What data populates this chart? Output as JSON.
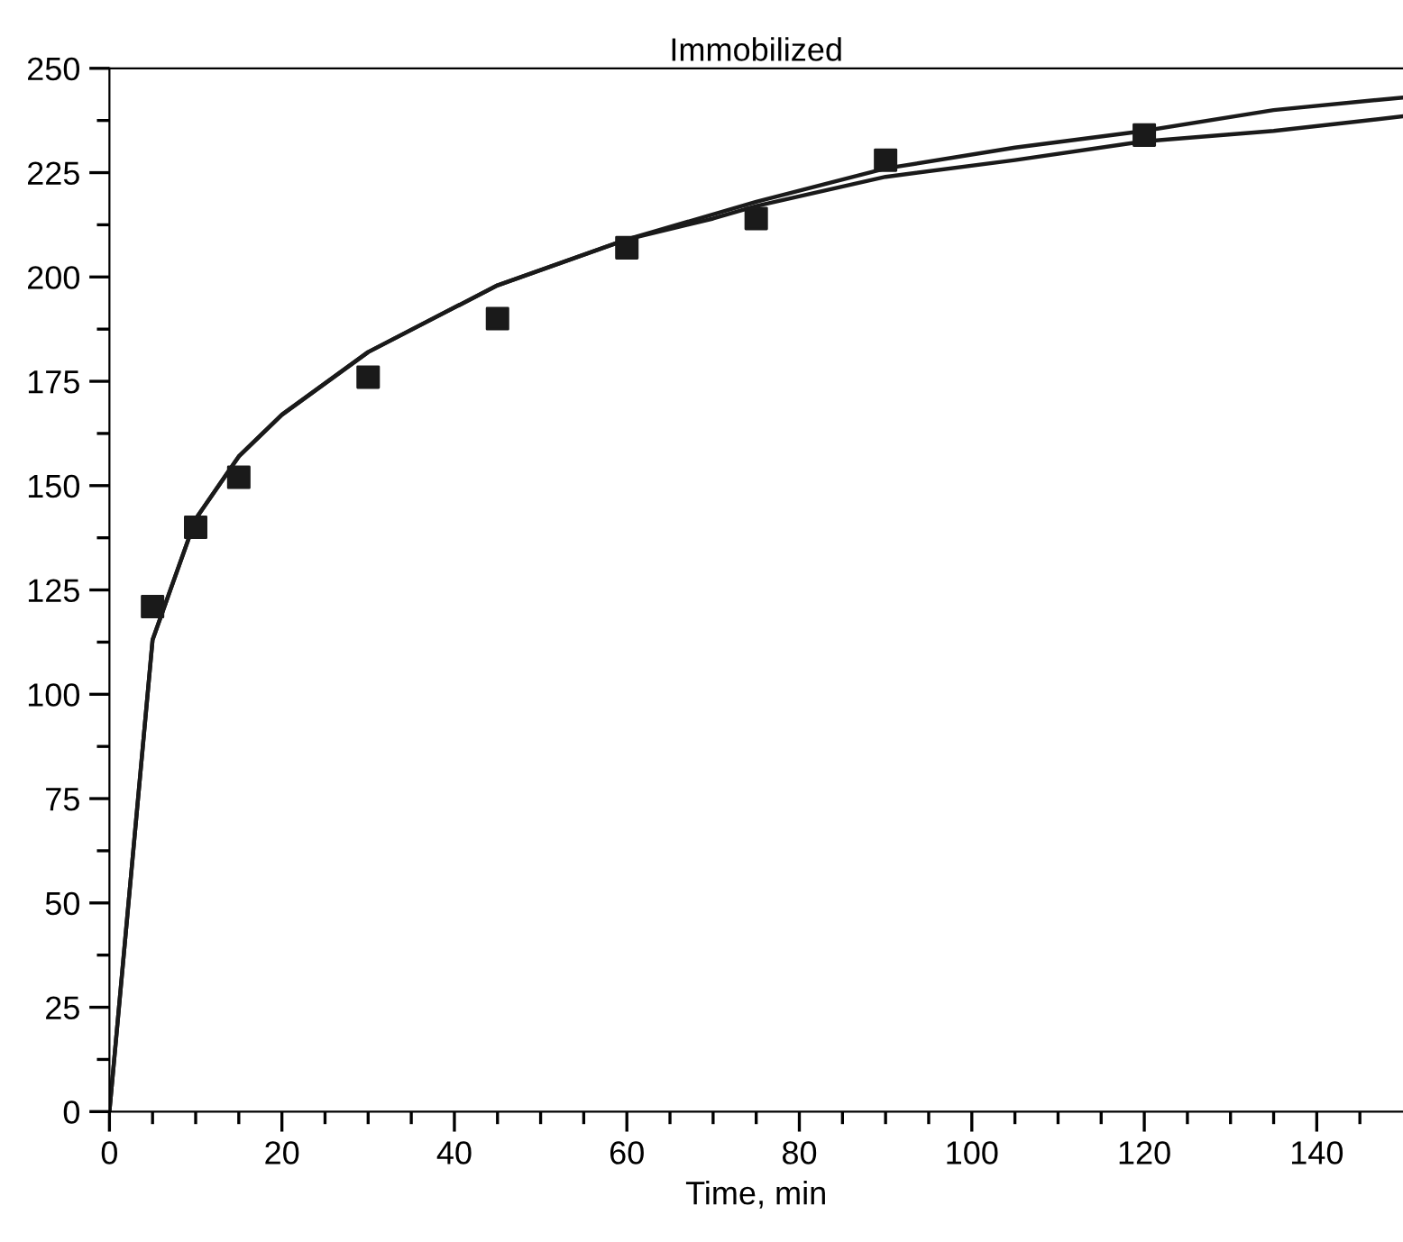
{
  "chart_data": {
    "type": "scatter",
    "title": "Immobilized",
    "xlabel": "Time, min",
    "xlim": [
      0,
      150
    ],
    "ylim": [
      0,
      250
    ],
    "xticks": [
      0,
      {
        "value": 5,
        "label": null
      },
      {
        "value": 10,
        "label": null
      },
      {
        "value": 15,
        "label": null
      },
      20,
      {
        "value": 25,
        "label": null
      },
      {
        "value": 30,
        "label": null
      },
      {
        "value": 35,
        "label": null
      },
      40,
      {
        "value": 45,
        "label": null
      },
      {
        "value": 50,
        "label": null
      },
      {
        "value": 55,
        "label": null
      },
      60,
      {
        "value": 65,
        "label": null
      },
      {
        "value": 70,
        "label": null
      },
      {
        "value": 75,
        "label": null
      },
      80,
      {
        "value": 85,
        "label": null
      },
      {
        "value": 90,
        "label": null
      },
      {
        "value": 95,
        "label": null
      },
      100,
      {
        "value": 105,
        "label": null
      },
      {
        "value": 110,
        "label": null
      },
      {
        "value": 115,
        "label": null
      },
      120,
      {
        "value": 125,
        "label": null
      },
      {
        "value": 130,
        "label": null
      },
      {
        "value": 135,
        "label": null
      },
      140,
      {
        "value": 145,
        "label": null
      }
    ],
    "yticks": [
      0,
      {
        "value": 12.5,
        "label": null
      },
      25,
      {
        "value": 37.5,
        "label": null
      },
      50,
      {
        "value": 62.5,
        "label": null
      },
      75,
      {
        "value": 87.5,
        "label": null
      },
      100,
      {
        "value": 112.5,
        "label": null
      },
      125,
      {
        "value": 137.5,
        "label": null
      },
      150,
      {
        "value": 162.5,
        "label": null
      },
      175,
      {
        "value": 187.5,
        "label": null
      },
      200,
      {
        "value": 212.5,
        "label": null
      },
      225,
      {
        "value": 237.5,
        "label": null
      },
      250
    ],
    "grid": false,
    "legend": false,
    "series": [
      {
        "marker": "square",
        "color": "#1a1a1a",
        "x": [
          5,
          10,
          15,
          30,
          45,
          60,
          75,
          90,
          120
        ],
        "values": [
          121,
          140,
          152,
          176,
          190,
          207,
          214,
          228,
          234
        ]
      },
      {
        "type": "line",
        "marker": "none",
        "line_style": "solid",
        "color": "#1a1a1a",
        "x": [
          0,
          5,
          10,
          15,
          20,
          30,
          45,
          60,
          75,
          90,
          105,
          120,
          135,
          150
        ],
        "values": [
          0,
          113,
          142,
          157,
          167,
          182,
          198,
          209,
          218,
          226,
          231,
          235,
          240,
          243
        ]
      },
      {
        "type": "line",
        "marker": "none",
        "line_style": "solid",
        "color": "#1a1a1a",
        "x": [
          0,
          5,
          10,
          15,
          20,
          30,
          45,
          60,
          70,
          75,
          90,
          105,
          120,
          135,
          150
        ],
        "values": [
          0,
          113,
          142,
          157,
          167,
          182,
          198,
          209,
          214,
          217,
          224,
          228,
          232.5,
          235,
          238.5
        ]
      }
    ]
  }
}
